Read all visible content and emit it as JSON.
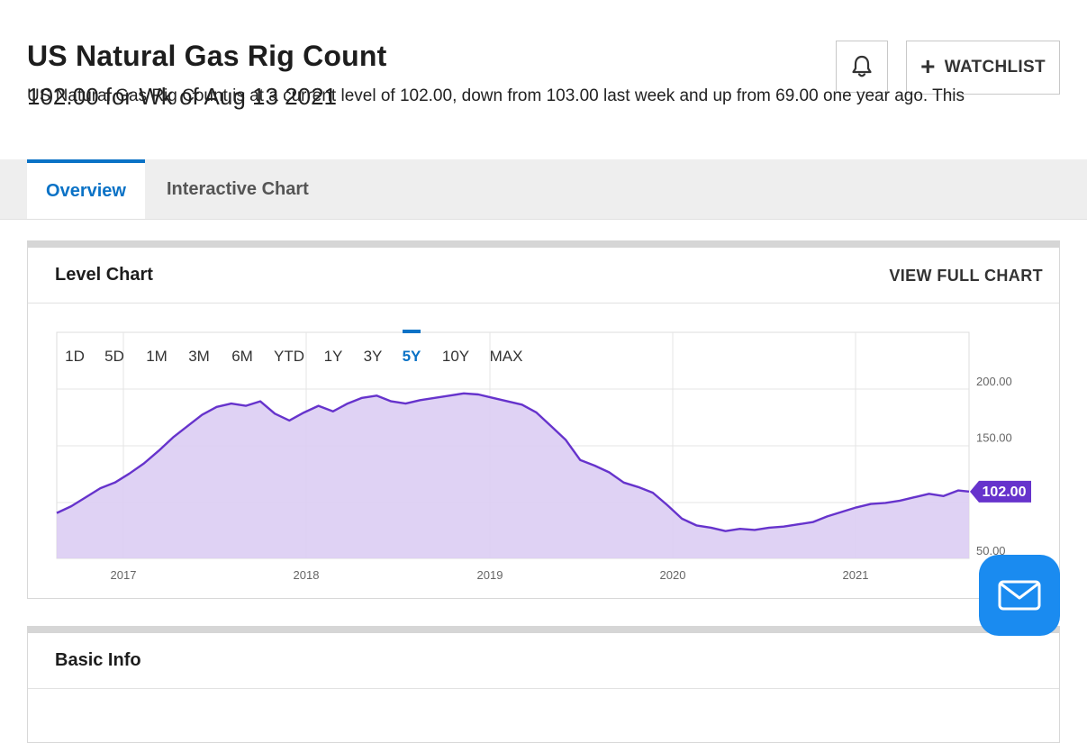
{
  "header": {
    "title": "US Natural Gas Rig Count",
    "subtitle": "102.00 for Wk of Aug 13 2021",
    "watchlist_label": "WATCHLIST"
  },
  "tabs": [
    {
      "label": "Overview",
      "active": true
    },
    {
      "label": "Interactive Chart",
      "active": false
    }
  ],
  "level_chart": {
    "title": "Level Chart",
    "view_full_label": "VIEW FULL CHART",
    "ranges": [
      "1D",
      "5D",
      "1M",
      "3M",
      "6M",
      "YTD",
      "1Y",
      "3Y",
      "5Y",
      "10Y",
      "MAX"
    ],
    "active_range": "5Y"
  },
  "chart_data": {
    "type": "area",
    "x_labels": [
      "2017",
      "2018",
      "2019",
      "2020",
      "2021"
    ],
    "y_ticks": [
      "200.00",
      "150.00",
      "100.00",
      "50.00"
    ],
    "ylim": [
      50,
      200
    ],
    "current_label": "102.00",
    "x": [
      2016.6,
      2016.68,
      2016.76,
      2016.84,
      2016.92,
      2017.0,
      2017.08,
      2017.16,
      2017.24,
      2017.32,
      2017.4,
      2017.48,
      2017.56,
      2017.64,
      2017.72,
      2017.8,
      2017.88,
      2017.96,
      2018.04,
      2018.12,
      2018.2,
      2018.28,
      2018.36,
      2018.44,
      2018.52,
      2018.6,
      2018.68,
      2018.76,
      2018.84,
      2018.92,
      2019.0,
      2019.08,
      2019.16,
      2019.24,
      2019.32,
      2019.4,
      2019.48,
      2019.56,
      2019.64,
      2019.72,
      2019.8,
      2019.88,
      2019.96,
      2020.04,
      2020.12,
      2020.2,
      2020.28,
      2020.36,
      2020.44,
      2020.52,
      2020.6,
      2020.68,
      2020.76,
      2020.84,
      2020.92,
      2021.0,
      2021.08,
      2021.16,
      2021.24,
      2021.32,
      2021.4,
      2021.48,
      2021.56,
      2021.62
    ],
    "y": [
      83,
      89,
      97,
      105,
      110,
      118,
      127,
      138,
      150,
      160,
      170,
      177,
      180,
      178,
      182,
      171,
      165,
      172,
      178,
      173,
      180,
      185,
      187,
      182,
      180,
      183,
      185,
      187,
      189,
      188,
      185,
      182,
      179,
      172,
      160,
      148,
      130,
      125,
      119,
      110,
      106,
      101,
      90,
      78,
      72,
      70,
      67,
      69,
      68,
      70,
      71,
      73,
      75,
      80,
      84,
      88,
      91,
      92,
      94,
      97,
      100,
      98,
      103,
      102
    ]
  },
  "basic_info": {
    "title": "Basic Info",
    "text": "US Natural Gas Rig Count is at a current level of 102.00, down from 103.00 last week and up from 69.00 one year ago. This"
  },
  "colors": {
    "accent": "#0a72c6",
    "series_line": "#6633cc",
    "series_fill": "#dccdf3",
    "chat_button": "#1a8bf0"
  }
}
